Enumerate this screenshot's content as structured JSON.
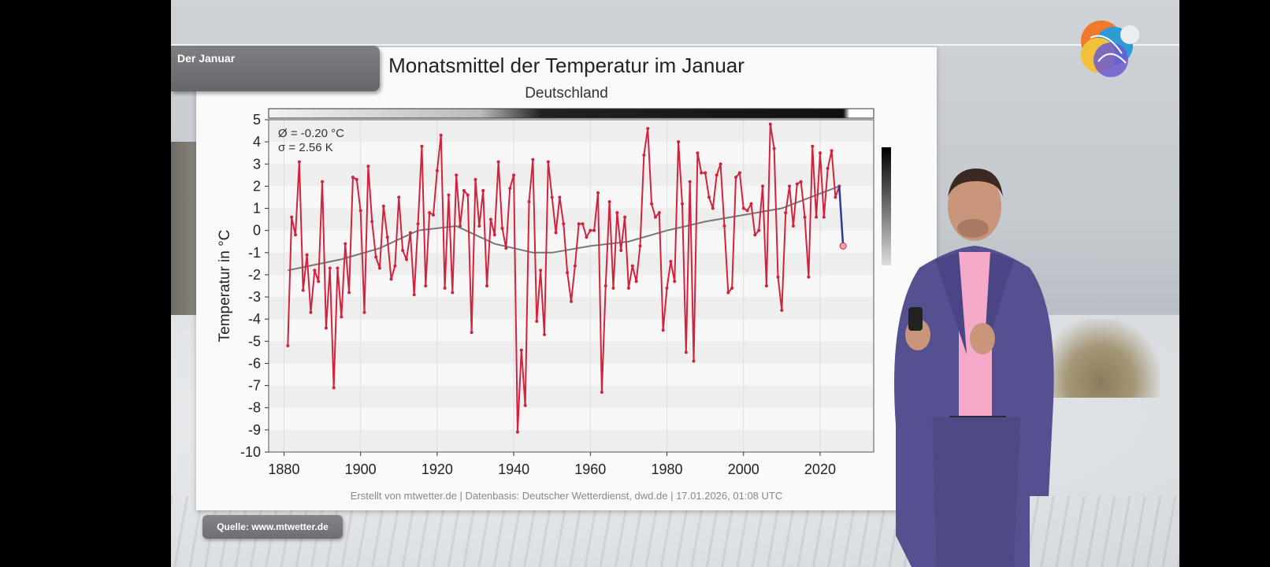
{
  "overlay": {
    "section_tab": "Der Januar",
    "source": "Quelle: www.mtwetter.de"
  },
  "colors": {
    "series": "#d0243e",
    "trend": "#777777",
    "latest": "#2c3a9a"
  },
  "chart_data": {
    "type": "line",
    "title": "Monatsmittel der Temperatur im Januar",
    "subtitle": "Deutschland",
    "ylabel": "Temperatur in °C",
    "xlabel": "",
    "xlim": [
      1876,
      2034
    ],
    "ylim": [
      -10,
      5
    ],
    "yticks": [
      "5",
      "4",
      "3",
      "2",
      "1",
      "0",
      "-1",
      "-2",
      "-3",
      "-4",
      "-5",
      "-6",
      "-7",
      "-8",
      "-9",
      "-10"
    ],
    "xticks": [
      "1880",
      "1900",
      "1920",
      "1940",
      "1960",
      "1980",
      "2000",
      "2020"
    ],
    "stats": [
      "Ø = -0.20 °C",
      "σ = 2.56 K"
    ],
    "footer": "Erstellt von mtwetter.de | Datenbasis: Deutscher Wetterdienst, dwd.de | 17.01.2026, 01:08 UTC",
    "grid": "horizontal bands",
    "series": [
      {
        "name": "",
        "x": [
          1881,
          1882,
          1883,
          1884,
          1885,
          1886,
          1887,
          1888,
          1889,
          1890,
          1891,
          1892,
          1893,
          1894,
          1895,
          1896,
          1897,
          1898,
          1899,
          1900,
          1901,
          1902,
          1903,
          1904,
          1905,
          1906,
          1907,
          1908,
          1909,
          1910,
          1911,
          1912,
          1913,
          1914,
          1915,
          1916,
          1917,
          1918,
          1919,
          1920,
          1921,
          1922,
          1923,
          1924,
          1925,
          1926,
          1927,
          1928,
          1929,
          1930,
          1931,
          1932,
          1933,
          1934,
          1935,
          1936,
          1937,
          1938,
          1939,
          1940,
          1941,
          1942,
          1943,
          1944,
          1945,
          1946,
          1947,
          1948,
          1949,
          1950,
          1951,
          1952,
          1953,
          1954,
          1955,
          1956,
          1957,
          1958,
          1959,
          1960,
          1961,
          1962,
          1963,
          1964,
          1965,
          1966,
          1967,
          1968,
          1969,
          1970,
          1971,
          1972,
          1973,
          1974,
          1975,
          1976,
          1977,
          1978,
          1979,
          1980,
          1981,
          1982,
          1983,
          1984,
          1985,
          1986,
          1987,
          1988,
          1989,
          1990,
          1991,
          1992,
          1993,
          1994,
          1995,
          1996,
          1997,
          1998,
          1999,
          2000,
          2001,
          2002,
          2003,
          2004,
          2005,
          2006,
          2007,
          2008,
          2009,
          2010,
          2011,
          2012,
          2013,
          2014,
          2015,
          2016,
          2017,
          2018,
          2019,
          2020,
          2021,
          2022,
          2023,
          2024,
          2025
        ],
        "values": [
          -5.2,
          0.6,
          -0.2,
          3.1,
          -2.7,
          -1.1,
          -3.7,
          -1.8,
          -2.3,
          2.2,
          -4.4,
          -1.7,
          -7.1,
          -1.7,
          -3.9,
          -0.6,
          -2.8,
          2.4,
          2.3,
          0.9,
          -3.7,
          2.9,
          0.4,
          -1.2,
          -1.7,
          1.1,
          -0.3,
          -2.2,
          -1.6,
          1.5,
          -0.9,
          -1.3,
          -0.1,
          -2.9,
          0.3,
          3.8,
          -2.5,
          0.8,
          0.7,
          2.7,
          4.3,
          -2.6,
          1.6,
          -2.8,
          2.5,
          0.2,
          1.8,
          1.6,
          -4.6,
          2.3,
          0.2,
          1.8,
          -2.5,
          0.5,
          -0.2,
          3.1,
          0.1,
          -0.8,
          1.9,
          2.5,
          -9.1,
          -5.4,
          -7.9,
          1.3,
          3.2,
          -4.1,
          -1.8,
          -4.7,
          3.1,
          1.5,
          -0.1,
          1.5,
          0.3,
          -1.9,
          -3.2,
          -1.6,
          0.3,
          0.3,
          -0.3,
          0.0,
          0.0,
          1.7,
          -7.3,
          -2.5,
          1.3,
          -2.6,
          0.8,
          -0.9,
          0.6,
          -2.6,
          -1.6,
          -2.3,
          -0.7,
          3.4,
          4.6,
          1.2,
          0.6,
          0.8,
          -4.5,
          -2.6,
          -1.4,
          -2.3,
          4.0,
          1.2,
          -5.5,
          2.2,
          -5.9,
          3.5,
          2.6,
          2.6,
          1.5,
          1.0,
          2.5,
          3.0,
          0.2,
          -2.8,
          -2.6,
          2.4,
          2.6,
          1.0,
          0.9,
          1.2,
          -0.2,
          0.0,
          2.0,
          -2.5,
          4.8,
          3.7,
          -2.1,
          -3.6,
          0.8,
          2.0,
          0.2,
          2.1,
          2.2,
          0.6,
          -2.1,
          3.8,
          0.6,
          3.5,
          0.6,
          2.8,
          3.6,
          1.5,
          2.0
        ]
      }
    ],
    "trend": {
      "x": [
        1881,
        1895,
        1905,
        1915,
        1925,
        1935,
        1945,
        1950,
        1960,
        1970,
        1980,
        1990,
        2000,
        2010,
        2025
      ],
      "values": [
        -1.8,
        -1.3,
        -0.8,
        0.0,
        0.2,
        -0.6,
        -1.0,
        -1.0,
        -0.7,
        -0.5,
        0.0,
        0.4,
        0.7,
        1.0,
        2.0
      ]
    },
    "latest": {
      "x": [
        2025,
        2026
      ],
      "values": [
        2.0,
        -0.7
      ]
    }
  }
}
